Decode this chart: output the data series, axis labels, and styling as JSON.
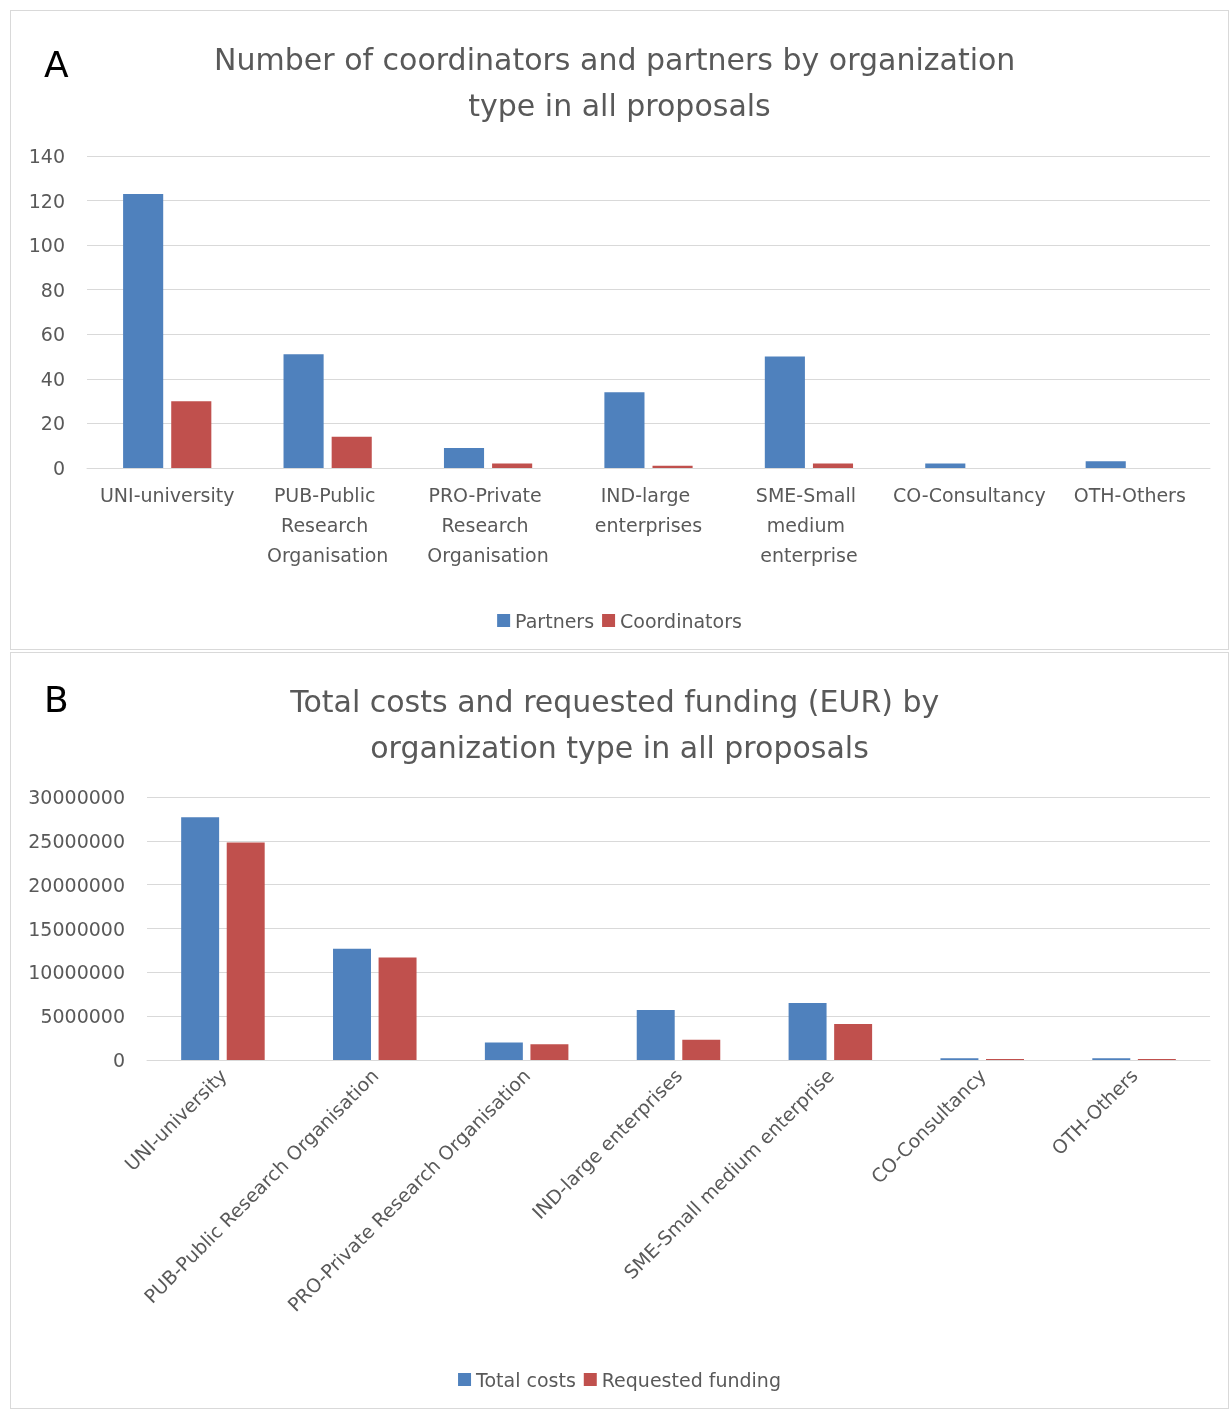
{
  "chart_data": [
    {
      "type": "bar",
      "title": "Number of coordinators and partners by organization type in all proposals",
      "annotations": [
        "A"
      ],
      "categories": [
        "UNI-university",
        "PUB-Public Research Organisation",
        "PRO-Private Research Organisation",
        "IND-large enterprises",
        "SME-Small medium enterprise",
        "CO-Consultancy",
        "OTH-Others"
      ],
      "series": [
        {
          "name": "Partners",
          "color": "#4f81bd",
          "values": [
            123,
            51,
            9,
            34,
            50,
            2,
            3
          ]
        },
        {
          "name": "Coordinators",
          "color": "#c0504d",
          "values": [
            30,
            14,
            2,
            1,
            2,
            0,
            0
          ]
        }
      ],
      "ylim": [
        0,
        140
      ],
      "yticks": [
        0,
        20,
        40,
        60,
        80,
        100,
        120,
        140
      ],
      "grid": "y",
      "legend": "bottom"
    },
    {
      "type": "bar",
      "title": "Total costs and requested funding (EUR) by organization type in all proposals",
      "annotations": [
        "B"
      ],
      "categories": [
        "UNI-university",
        "PUB-Public Research Organisation",
        "PRO-Private Research Organisation",
        "IND-large enterprises",
        "SME-Small medium enterprise",
        "CO-Consultancy",
        "OTH-Others"
      ],
      "series": [
        {
          "name": "Total costs",
          "color": "#4f81bd",
          "values": [
            27700000,
            12700000,
            2000000,
            5700000,
            6500000,
            200000,
            200000
          ]
        },
        {
          "name": "Requested funding",
          "color": "#c0504d",
          "values": [
            24800000,
            11700000,
            1800000,
            2300000,
            4100000,
            100000,
            100000
          ]
        }
      ],
      "ylim": [
        0,
        30000000
      ],
      "yticks": [
        0,
        5000000,
        10000000,
        15000000,
        20000000,
        25000000,
        30000000
      ],
      "grid": "y",
      "legend": "bottom"
    }
  ]
}
